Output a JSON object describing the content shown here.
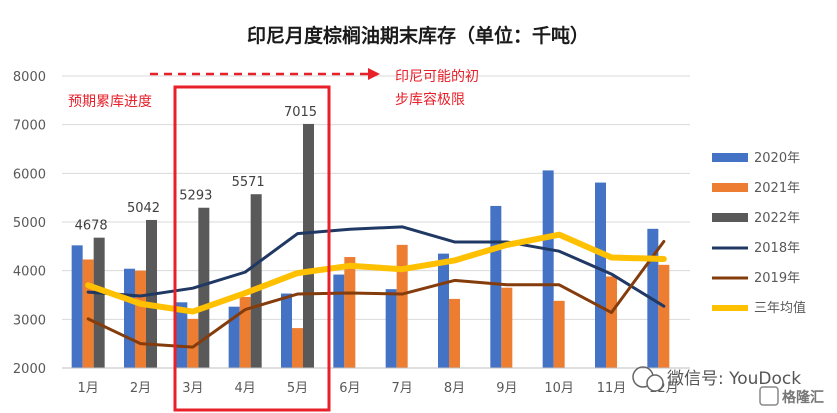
{
  "chart_data": {
    "type": "bar",
    "title": "印尼月度棕榈油期末库存（单位：千吨）",
    "categories": [
      "1月",
      "2月",
      "3月",
      "4月",
      "5月",
      "6月",
      "7月",
      "8月",
      "9月",
      "10月",
      "11月",
      "12月"
    ],
    "ylim": [
      2000,
      8000
    ],
    "yticks": [
      2000,
      3000,
      4000,
      5000,
      6000,
      7000,
      8000
    ],
    "grid": true,
    "legend_position": "right",
    "bar_series": [
      {
        "name": "2020年",
        "color": "#4472c4",
        "values": [
          4520,
          4040,
          3350,
          3260,
          3530,
          3920,
          3620,
          4350,
          5330,
          6060,
          5810,
          4860
        ]
      },
      {
        "name": "2021年",
        "color": "#ed7d31",
        "values": [
          4230,
          4000,
          3010,
          3460,
          2820,
          4280,
          4530,
          3420,
          3650,
          3380,
          3880,
          4120
        ]
      },
      {
        "name": "2022年",
        "color": "#595959",
        "values": [
          4678,
          5042,
          5293,
          5571,
          7015,
          null,
          null,
          null,
          null,
          null,
          null,
          null
        ]
      }
    ],
    "line_series": [
      {
        "name": "2018年",
        "color": "#203864",
        "width": 3,
        "values": [
          3560,
          3480,
          3640,
          3970,
          4760,
          4850,
          4900,
          4590,
          4590,
          4400,
          3930,
          3270
        ]
      },
      {
        "name": "2019年",
        "color": "#843c0c",
        "width": 3,
        "values": [
          3010,
          2500,
          2430,
          3200,
          3520,
          3540,
          3520,
          3800,
          3710,
          3710,
          3140,
          4600
        ]
      },
      {
        "name": "三年均值",
        "color": "#ffc000",
        "width": 6,
        "values": [
          3700,
          3320,
          3160,
          3540,
          3950,
          4100,
          4030,
          4210,
          4530,
          4740,
          4270,
          4240
        ]
      }
    ],
    "data_labels": {
      "series": "2022年",
      "values": [
        "4678",
        "5042",
        "5293",
        "5571",
        "7015"
      ]
    },
    "annotations": {
      "left_note": "预期累库进度",
      "right_note_line1": "印尼可能的初",
      "right_note_line2": "步库容极限"
    }
  },
  "watermark": {
    "text": "微信号: YouDock",
    "logo_text": "格隆汇"
  }
}
